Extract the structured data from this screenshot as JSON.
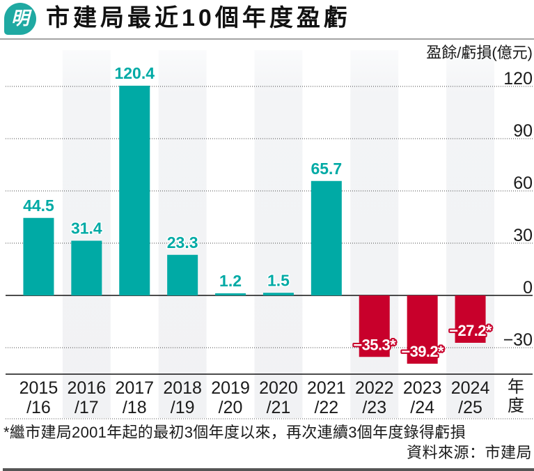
{
  "header": {
    "logo_text": "明",
    "title": "市建局最近10個年度盈虧"
  },
  "chart_data": {
    "type": "bar",
    "title": "市建局最近10個年度盈虧",
    "ylabel": "盈餘/虧損(億元)",
    "xlabel": "年度",
    "categories": [
      "2015/16",
      "2016/17",
      "2017/18",
      "2018/19",
      "2019/20",
      "2020/21",
      "2021/22",
      "2022/23",
      "2023/24",
      "2024/25"
    ],
    "x_tick_labels": [
      [
        "2015",
        "/16"
      ],
      [
        "2016",
        "/17"
      ],
      [
        "2017",
        "/18"
      ],
      [
        "2018",
        "/19"
      ],
      [
        "2019",
        "/20"
      ],
      [
        "2020",
        "/21"
      ],
      [
        "2021",
        "/22"
      ],
      [
        "2022",
        "/23"
      ],
      [
        "2023",
        "/24"
      ],
      [
        "2024",
        "/25"
      ]
    ],
    "values": [
      44.5,
      31.4,
      120.4,
      23.3,
      1.2,
      1.5,
      65.7,
      -35.3,
      -39.2,
      -27.2
    ],
    "data_labels": [
      "44.5",
      "31.4",
      "120.4",
      "23.3",
      "1.2",
      "1.5",
      "65.7",
      "−35.3*",
      "−39.2*",
      "−27.2*"
    ],
    "yticks": [
      120,
      90,
      60,
      30,
      0,
      -30
    ],
    "ytick_labels": [
      "120",
      "90",
      "60",
      "30",
      "0",
      "−30"
    ],
    "ylim": [
      -45,
      140
    ],
    "grid": true,
    "colors": {
      "positive": "#00aaa5",
      "negative": "#c8002b",
      "logo": "#1fa9a2"
    }
  },
  "footer": {
    "footnote": "*繼市建局2001年起的最初3個年度以來，再次連續3個年度錄得虧損",
    "source": "資料來源：市建局"
  }
}
